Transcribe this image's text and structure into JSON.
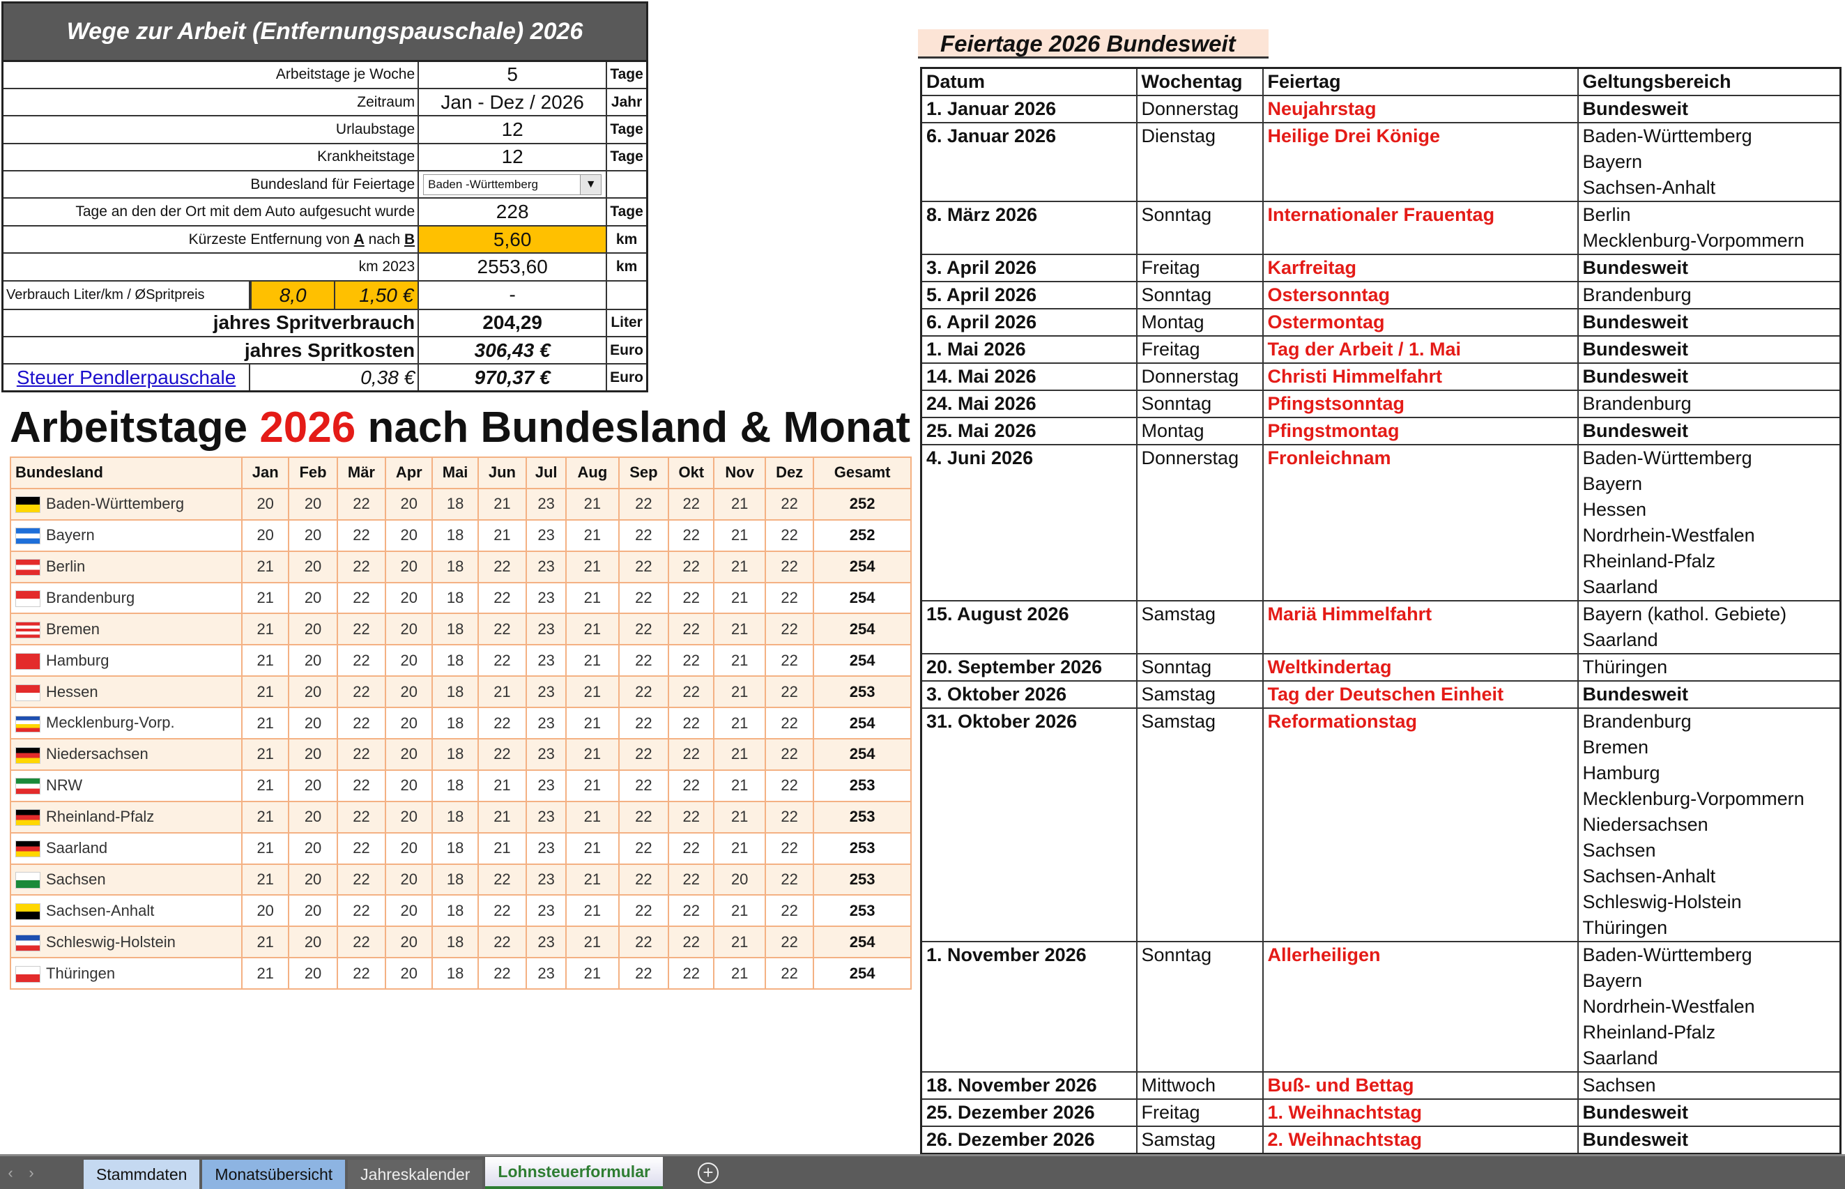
{
  "calculator": {
    "title": "Wege zur Arbeit  (Entfernungspauschale)  2026",
    "rows": [
      {
        "label": "Arbeitstage je Woche",
        "value": "5",
        "unit": "Tage"
      },
      {
        "label": "Zeitraum",
        "value": "Jan - Dez / 2026",
        "unit": "Jahr"
      },
      {
        "label": "Urlaubstage",
        "value": "12",
        "unit": "Tage"
      },
      {
        "label": "Krankheitstage",
        "value": "12",
        "unit": "Tage"
      },
      {
        "label": "Bundesland für Feiertage",
        "value": "Baden -Württemberg",
        "unit": ""
      },
      {
        "label": "Tage an den der Ort mit dem Auto aufgesucht wurde",
        "value": "228",
        "unit": "Tage"
      },
      {
        "label_prefix": "Kürzeste Entfernung von ",
        "label_a": "A",
        "label_mid": " nach ",
        "label_b": "B",
        "value": "5,60",
        "unit": "km"
      },
      {
        "label": "km 2023",
        "value": "2553,60",
        "unit": "km"
      }
    ],
    "consumption": {
      "label": "Verbrauch Liter/km   /   ØSpritpreis",
      "liters": "8,0",
      "price": "1,50 €",
      "value": "-"
    },
    "fuel_usage": {
      "label": "jahres Spritverbrauch",
      "value": "204,29",
      "unit": "Liter"
    },
    "fuel_cost": {
      "label": "jahres Spritkosten",
      "value": "306,43 €",
      "unit": "Euro"
    },
    "commuter": {
      "link": "Steuer Pendlerpauschale",
      "rate": "0,38 €",
      "value": "970,37 €",
      "unit": "Euro"
    },
    "highlight_color": "#ffc000"
  },
  "monthly": {
    "heading_pre": "Arbeitstage ",
    "heading_year": "2026",
    "heading_post": " nach Bundesland & Monat",
    "headers": [
      "Bundesland",
      "Jan",
      "Feb",
      "Mär",
      "Apr",
      "Mai",
      "Jun",
      "Jul",
      "Aug",
      "Sep",
      "Okt",
      "Nov",
      "Dez",
      "Gesamt"
    ],
    "rows": [
      {
        "state": "Baden-Württemberg",
        "flag": [
          "#000000",
          "#ffd700"
        ],
        "values": [
          "20",
          "20",
          "22",
          "20",
          "18",
          "21",
          "23",
          "21",
          "22",
          "22",
          "21",
          "22"
        ],
        "total": "252"
      },
      {
        "state": "Bayern",
        "flag": [
          "#1e6fd9",
          "#ffffff",
          "#1e6fd9"
        ],
        "values": [
          "20",
          "20",
          "22",
          "20",
          "18",
          "21",
          "23",
          "21",
          "22",
          "22",
          "21",
          "22"
        ],
        "total": "252"
      },
      {
        "state": "Berlin",
        "flag": [
          "#e32b2b",
          "#ffffff",
          "#e32b2b"
        ],
        "values": [
          "21",
          "20",
          "22",
          "20",
          "18",
          "22",
          "23",
          "21",
          "22",
          "22",
          "21",
          "22"
        ],
        "total": "254"
      },
      {
        "state": "Brandenburg",
        "flag": [
          "#e32b2b",
          "#ffffff"
        ],
        "values": [
          "21",
          "20",
          "22",
          "20",
          "18",
          "22",
          "23",
          "21",
          "22",
          "22",
          "21",
          "22"
        ],
        "total": "254"
      },
      {
        "state": "Bremen",
        "flag": [
          "#e32b2b",
          "#ffffff",
          "#e32b2b",
          "#ffffff",
          "#e32b2b"
        ],
        "values": [
          "21",
          "20",
          "22",
          "20",
          "18",
          "22",
          "23",
          "21",
          "22",
          "22",
          "21",
          "22"
        ],
        "total": "254"
      },
      {
        "state": "Hamburg",
        "flag": [
          "#e32b2b"
        ],
        "values": [
          "21",
          "20",
          "22",
          "20",
          "18",
          "22",
          "23",
          "21",
          "22",
          "22",
          "21",
          "22"
        ],
        "total": "254"
      },
      {
        "state": "Hessen",
        "flag": [
          "#e32b2b",
          "#ffffff"
        ],
        "values": [
          "21",
          "20",
          "22",
          "20",
          "18",
          "21",
          "23",
          "21",
          "22",
          "22",
          "21",
          "22"
        ],
        "total": "253"
      },
      {
        "state": "Mecklenburg-Vorp.",
        "flag": [
          "#1e4fb0",
          "#ffffff",
          "#ffd700",
          "#e32b2b"
        ],
        "values": [
          "21",
          "20",
          "22",
          "20",
          "18",
          "22",
          "23",
          "21",
          "22",
          "22",
          "21",
          "22"
        ],
        "total": "254"
      },
      {
        "state": "Niedersachsen",
        "flag": [
          "#000000",
          "#e32b2b",
          "#ffd700"
        ],
        "values": [
          "21",
          "20",
          "22",
          "20",
          "18",
          "22",
          "23",
          "21",
          "22",
          "22",
          "21",
          "22"
        ],
        "total": "254"
      },
      {
        "state": "NRW",
        "flag": [
          "#1a8a3a",
          "#ffffff",
          "#e32b2b"
        ],
        "values": [
          "21",
          "20",
          "22",
          "20",
          "18",
          "21",
          "23",
          "21",
          "22",
          "22",
          "21",
          "22"
        ],
        "total": "253"
      },
      {
        "state": "Rheinland-Pfalz",
        "flag": [
          "#000000",
          "#e32b2b",
          "#ffd700"
        ],
        "values": [
          "21",
          "20",
          "22",
          "20",
          "18",
          "21",
          "23",
          "21",
          "22",
          "22",
          "21",
          "22"
        ],
        "total": "253"
      },
      {
        "state": "Saarland",
        "flag": [
          "#000000",
          "#e32b2b",
          "#ffd700"
        ],
        "values": [
          "21",
          "20",
          "22",
          "20",
          "18",
          "21",
          "23",
          "21",
          "22",
          "22",
          "21",
          "22"
        ],
        "total": "253"
      },
      {
        "state": "Sachsen",
        "flag": [
          "#ffffff",
          "#1a8a3a"
        ],
        "values": [
          "21",
          "20",
          "22",
          "20",
          "18",
          "22",
          "23",
          "21",
          "22",
          "22",
          "20",
          "22"
        ],
        "total": "253"
      },
      {
        "state": "Sachsen-Anhalt",
        "flag": [
          "#ffd700",
          "#000000"
        ],
        "values": [
          "20",
          "20",
          "22",
          "20",
          "18",
          "22",
          "23",
          "21",
          "22",
          "22",
          "21",
          "22"
        ],
        "total": "253"
      },
      {
        "state": "Schleswig-Holstein",
        "flag": [
          "#1e4fb0",
          "#ffffff",
          "#e32b2b"
        ],
        "values": [
          "21",
          "20",
          "22",
          "20",
          "18",
          "22",
          "23",
          "21",
          "22",
          "22",
          "21",
          "22"
        ],
        "total": "254"
      },
      {
        "state": "Thüringen",
        "flag": [
          "#ffffff",
          "#e32b2b"
        ],
        "values": [
          "21",
          "20",
          "22",
          "20",
          "18",
          "22",
          "23",
          "21",
          "22",
          "22",
          "21",
          "22"
        ],
        "total": "254"
      }
    ]
  },
  "holidays": {
    "title": "Feiertage 2026 Bundesweit",
    "headers": [
      "Datum",
      "Wochentag",
      "Feiertag",
      "Geltungsbereich"
    ],
    "rows": [
      {
        "date": "1. Januar 2026",
        "weekday": "Donnerstag",
        "name": "Neujahrstag",
        "regions": [
          "Bundesweit"
        ]
      },
      {
        "date": "6. Januar 2026",
        "weekday": "Dienstag",
        "name": "Heilige Drei Könige",
        "regions": [
          "Baden-Württemberg",
          "Bayern",
          "Sachsen-Anhalt"
        ]
      },
      {
        "date": "8. März 2026",
        "weekday": "Sonntag",
        "name": "Internationaler Frauentag",
        "regions": [
          "Berlin",
          "Mecklenburg-Vorpommern"
        ]
      },
      {
        "date": "3. April 2026",
        "weekday": "Freitag",
        "name": "Karfreitag",
        "regions": [
          "Bundesweit"
        ]
      },
      {
        "date": "5. April 2026",
        "weekday": "Sonntag",
        "name": "Ostersonntag",
        "regions": [
          "Brandenburg"
        ]
      },
      {
        "date": "6. April 2026",
        "weekday": "Montag",
        "name": "Ostermontag",
        "regions": [
          "Bundesweit"
        ]
      },
      {
        "date": "1. Mai 2026",
        "weekday": "Freitag",
        "name": "Tag der Arbeit / 1. Mai",
        "regions": [
          "Bundesweit"
        ]
      },
      {
        "date": "14. Mai 2026",
        "weekday": "Donnerstag",
        "name": "Christi Himmelfahrt",
        "regions": [
          "Bundesweit"
        ]
      },
      {
        "date": "24. Mai 2026",
        "weekday": "Sonntag",
        "name": "Pfingstsonntag",
        "regions": [
          "Brandenburg"
        ]
      },
      {
        "date": "25. Mai 2026",
        "weekday": "Montag",
        "name": "Pfingstmontag",
        "regions": [
          "Bundesweit"
        ]
      },
      {
        "date": "4. Juni 2026",
        "weekday": "Donnerstag",
        "name": "Fronleichnam",
        "regions": [
          "Baden-Württemberg",
          "Bayern",
          "Hessen",
          "Nordrhein-Westfalen",
          "Rheinland-Pfalz",
          "Saarland"
        ]
      },
      {
        "date": "15. August 2026",
        "weekday": "Samstag",
        "name": "Mariä Himmelfahrt",
        "regions": [
          "Bayern (kathol. Gebiete)",
          "Saarland"
        ]
      },
      {
        "date": "20. September 2026",
        "weekday": "Sonntag",
        "name": "Weltkindertag",
        "regions": [
          "Thüringen"
        ]
      },
      {
        "date": "3. Oktober 2026",
        "weekday": "Samstag",
        "name": "Tag der Deutschen Einheit",
        "regions": [
          "Bundesweit"
        ]
      },
      {
        "date": "31. Oktober 2026",
        "weekday": "Samstag",
        "name": "Reformationstag",
        "regions": [
          "Brandenburg",
          "Bremen",
          "Hamburg",
          "Mecklenburg-Vorpommern",
          "Niedersachsen",
          "Sachsen",
          "Sachsen-Anhalt",
          "Schleswig-Holstein",
          "Thüringen"
        ]
      },
      {
        "date": "1. November 2026",
        "weekday": "Sonntag",
        "name": "Allerheiligen",
        "regions": [
          "Baden-Württemberg",
          "Bayern",
          "Nordrhein-Westfalen",
          "Rheinland-Pfalz",
          "Saarland"
        ]
      },
      {
        "date": "18. November 2026",
        "weekday": "Mittwoch",
        "name": "Buß- und Bettag",
        "regions": [
          "Sachsen"
        ]
      },
      {
        "date": "25. Dezember 2026",
        "weekday": "Freitag",
        "name": "1. Weihnachtstag",
        "regions": [
          "Bundesweit"
        ]
      },
      {
        "date": "26. Dezember 2026",
        "weekday": "Samstag",
        "name": "2. Weihnachtstag",
        "regions": [
          "Bundesweit"
        ]
      }
    ],
    "holiday_color": "#e41b17"
  },
  "sheet_tabs": {
    "tabs": [
      "Stammdaten",
      "Monatsübersicht",
      "Jahreskalender",
      "Lohnsteuerformular"
    ],
    "active": "Lohnsteuerformular",
    "add_icon": "plus-circle-icon"
  }
}
